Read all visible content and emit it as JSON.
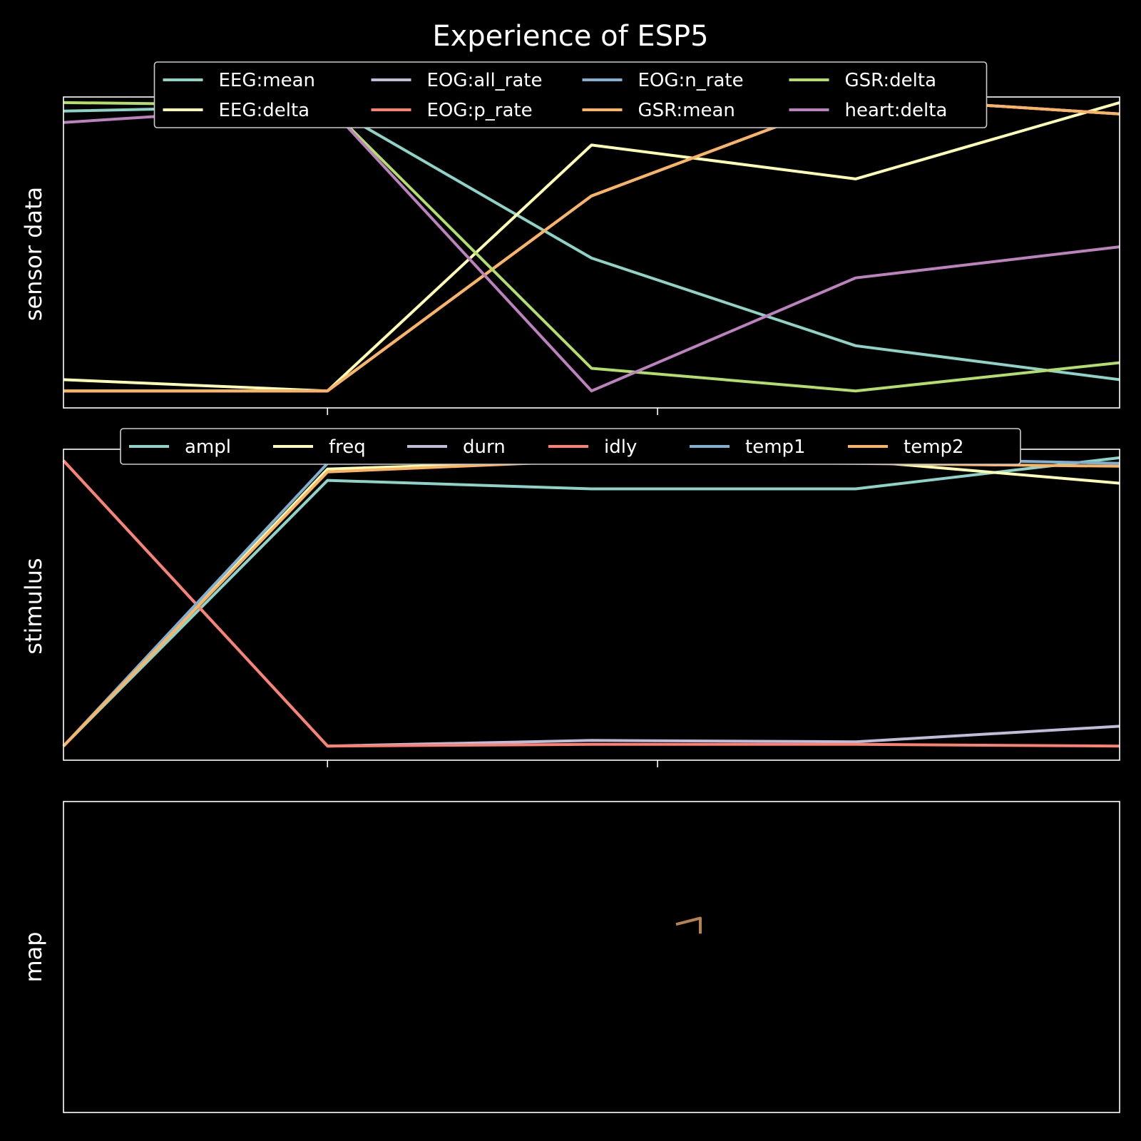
{
  "figure": {
    "title": "Experience of ESP5"
  },
  "chart_data": [
    {
      "type": "line",
      "ylabel": "sensor data",
      "x": [
        0,
        1,
        2,
        3,
        4
      ],
      "ylim": [
        -0.05,
        1.05
      ],
      "xticks": [
        -0.25,
        1.0,
        2.25
      ],
      "legend_placement": "top-center",
      "legend_columns": 4,
      "series": [
        {
          "name": "EEG:mean",
          "color": "#8dd3c7",
          "values": [
            1.0,
            1.02,
            0.48,
            0.17,
            0.05
          ]
        },
        {
          "name": "EEG:delta",
          "color": "#feffb3",
          "values": [
            0.05,
            0.01,
            0.88,
            0.76,
            1.03
          ]
        },
        {
          "name": "EOG:all_rate",
          "color": "#bfbbd9",
          "values": [
            0.01,
            0.01,
            0.7,
            1.05,
            0.99
          ]
        },
        {
          "name": "EOG:p_rate",
          "color": "#fa8174",
          "values": [
            0.01,
            0.01,
            0.7,
            1.05,
            0.99
          ]
        },
        {
          "name": "EOG:n_rate",
          "color": "#81b1d2",
          "values": [
            0.01,
            0.01,
            0.7,
            1.05,
            0.99
          ]
        },
        {
          "name": "GSR:mean",
          "color": "#fdb462",
          "values": [
            0.01,
            0.01,
            0.7,
            1.05,
            0.99
          ]
        },
        {
          "name": "GSR:delta",
          "color": "#b3de69",
          "values": [
            1.03,
            1.02,
            0.09,
            0.01,
            0.11
          ]
        },
        {
          "name": "heart:delta",
          "color": "#bc82bd",
          "values": [
            0.96,
            1.02,
            0.01,
            0.41,
            0.52
          ]
        }
      ]
    },
    {
      "type": "line",
      "ylabel": "stimulus",
      "x": [
        0,
        1,
        2,
        3,
        4
      ],
      "ylim": [
        -0.05,
        1.05
      ],
      "xticks": [
        -0.25,
        1.0,
        2.25
      ],
      "legend_placement": "top-center",
      "legend_columns": 6,
      "series": [
        {
          "name": "ampl",
          "color": "#8dd3c7",
          "values": [
            0.0,
            0.94,
            0.91,
            0.91,
            1.02
          ]
        },
        {
          "name": "freq",
          "color": "#feffb3",
          "values": [
            0.0,
            0.98,
            1.01,
            1.01,
            0.93
          ]
        },
        {
          "name": "durn",
          "color": "#bfbbd9",
          "values": [
            1.01,
            0.0,
            0.02,
            0.015,
            0.07
          ]
        },
        {
          "name": "idly",
          "color": "#fa8174",
          "values": [
            1.01,
            0.0,
            0.006,
            0.006,
            0.0
          ]
        },
        {
          "name": "temp1",
          "color": "#81b1d2",
          "values": [
            0.0,
            1.0,
            1.02,
            1.02,
            1.0
          ]
        },
        {
          "name": "temp2",
          "color": "#fdb462",
          "values": [
            0.0,
            0.97,
            1.01,
            1.0,
            0.99
          ]
        }
      ]
    },
    {
      "type": "line",
      "ylabel": "map",
      "x": [
        0.0,
        1.0
      ],
      "xlim": [
        0,
        1
      ],
      "ylim": [
        0,
        1
      ],
      "series": [
        {
          "color": "#b5834f",
          "x": [
            0.58,
            0.603,
            0.603
          ],
          "y": [
            0.605,
            0.625,
            0.575
          ]
        }
      ]
    }
  ]
}
